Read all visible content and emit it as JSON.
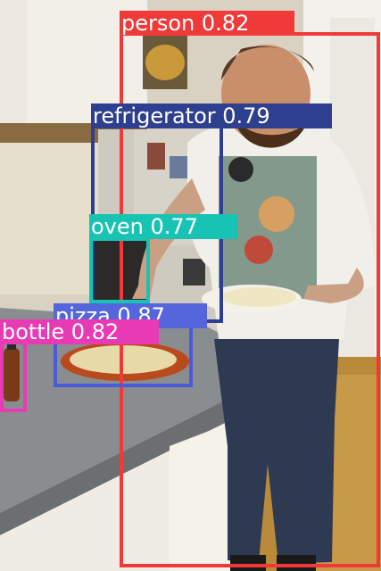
{
  "image": {
    "description_only": false
  },
  "detections": {
    "person": {
      "class": "person",
      "score": "0.82",
      "color": "#f03a3a",
      "label_color": "#f03a3a"
    },
    "refrigerator": {
      "class": "refrigerator",
      "score": "0.79",
      "color": "#2f3f8f",
      "label_color": "#2f3f8f"
    },
    "oven": {
      "class": "oven",
      "score": "0.77",
      "color": "#19c3b3",
      "label_color": "#19c3b3"
    },
    "pizza": {
      "class": "pizza",
      "score": "0.87",
      "color": "#4a5bd8",
      "label_color": "#5566dd"
    },
    "bottle": {
      "class": "bottle",
      "score": "0.82",
      "color": "#e83ab4",
      "label_color": "#e83ab4"
    }
  },
  "labels": {
    "person": "person 0.82",
    "refrigerator": "refrigerator 0.79",
    "oven": "oven 0.77",
    "pizza": "pizza 0.87",
    "bottle": "bottle 0.82"
  }
}
